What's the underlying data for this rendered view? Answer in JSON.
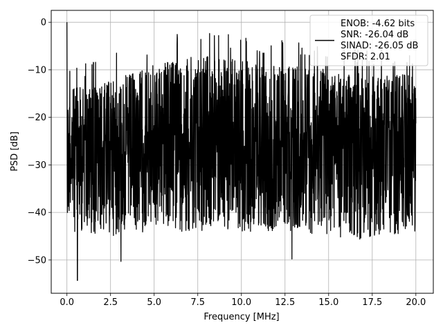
{
  "chart_data": {
    "type": "line",
    "title": "",
    "xlabel": "Frequency [MHz]",
    "ylabel": "PSD [dB]",
    "xlim": [
      -0.9,
      21.0
    ],
    "ylim": [
      -57.0,
      2.5
    ],
    "grid": true,
    "legend_position": "top-right",
    "xticks": [
      0.0,
      2.5,
      5.0,
      7.5,
      10.0,
      12.5,
      15.0,
      17.5,
      20.0
    ],
    "xtick_labels": [
      "0.0",
      "2.5",
      "5.0",
      "7.5",
      "10.0",
      "12.5",
      "15.0",
      "17.5",
      "20.0"
    ],
    "yticks": [
      0,
      -10,
      -20,
      -30,
      -40,
      -50
    ],
    "ytick_labels": [
      "0",
      "−10",
      "−20",
      "−30",
      "−40",
      "−50"
    ],
    "legend_lines": [
      "ENOB: -4.62 bits",
      "SNR: -26.04 dB",
      "SINAD: -26.05 dB",
      "SFDR: 2.01"
    ],
    "series": [
      {
        "color": "#000000",
        "x_range": [
          0.0,
          20.0
        ],
        "points_approx": 2048,
        "peak": {
          "x": 0.0,
          "y": 0.0
        },
        "upper_envelope_db": [
          [
            0.0,
            -14
          ],
          [
            2.0,
            -13
          ],
          [
            5.0,
            -9
          ],
          [
            7.5,
            -7
          ],
          [
            10.0,
            -8
          ],
          [
            12.5,
            -9
          ],
          [
            15.0,
            -10
          ],
          [
            17.5,
            -11
          ],
          [
            20.0,
            -11
          ]
        ],
        "lower_envelope_db": [
          [
            0.0,
            -44
          ],
          [
            2.5,
            -45
          ],
          [
            5.0,
            -44
          ],
          [
            7.5,
            -44
          ],
          [
            10.0,
            -44
          ],
          [
            12.5,
            -44
          ],
          [
            15.0,
            -45
          ],
          [
            17.5,
            -46
          ],
          [
            20.0,
            -44
          ]
        ],
        "noted_minima": [
          {
            "x": 0.6,
            "y": -54.3
          },
          {
            "x": 3.1,
            "y": -50.3
          },
          {
            "x": 12.9,
            "y": -49.8
          }
        ]
      }
    ]
  }
}
